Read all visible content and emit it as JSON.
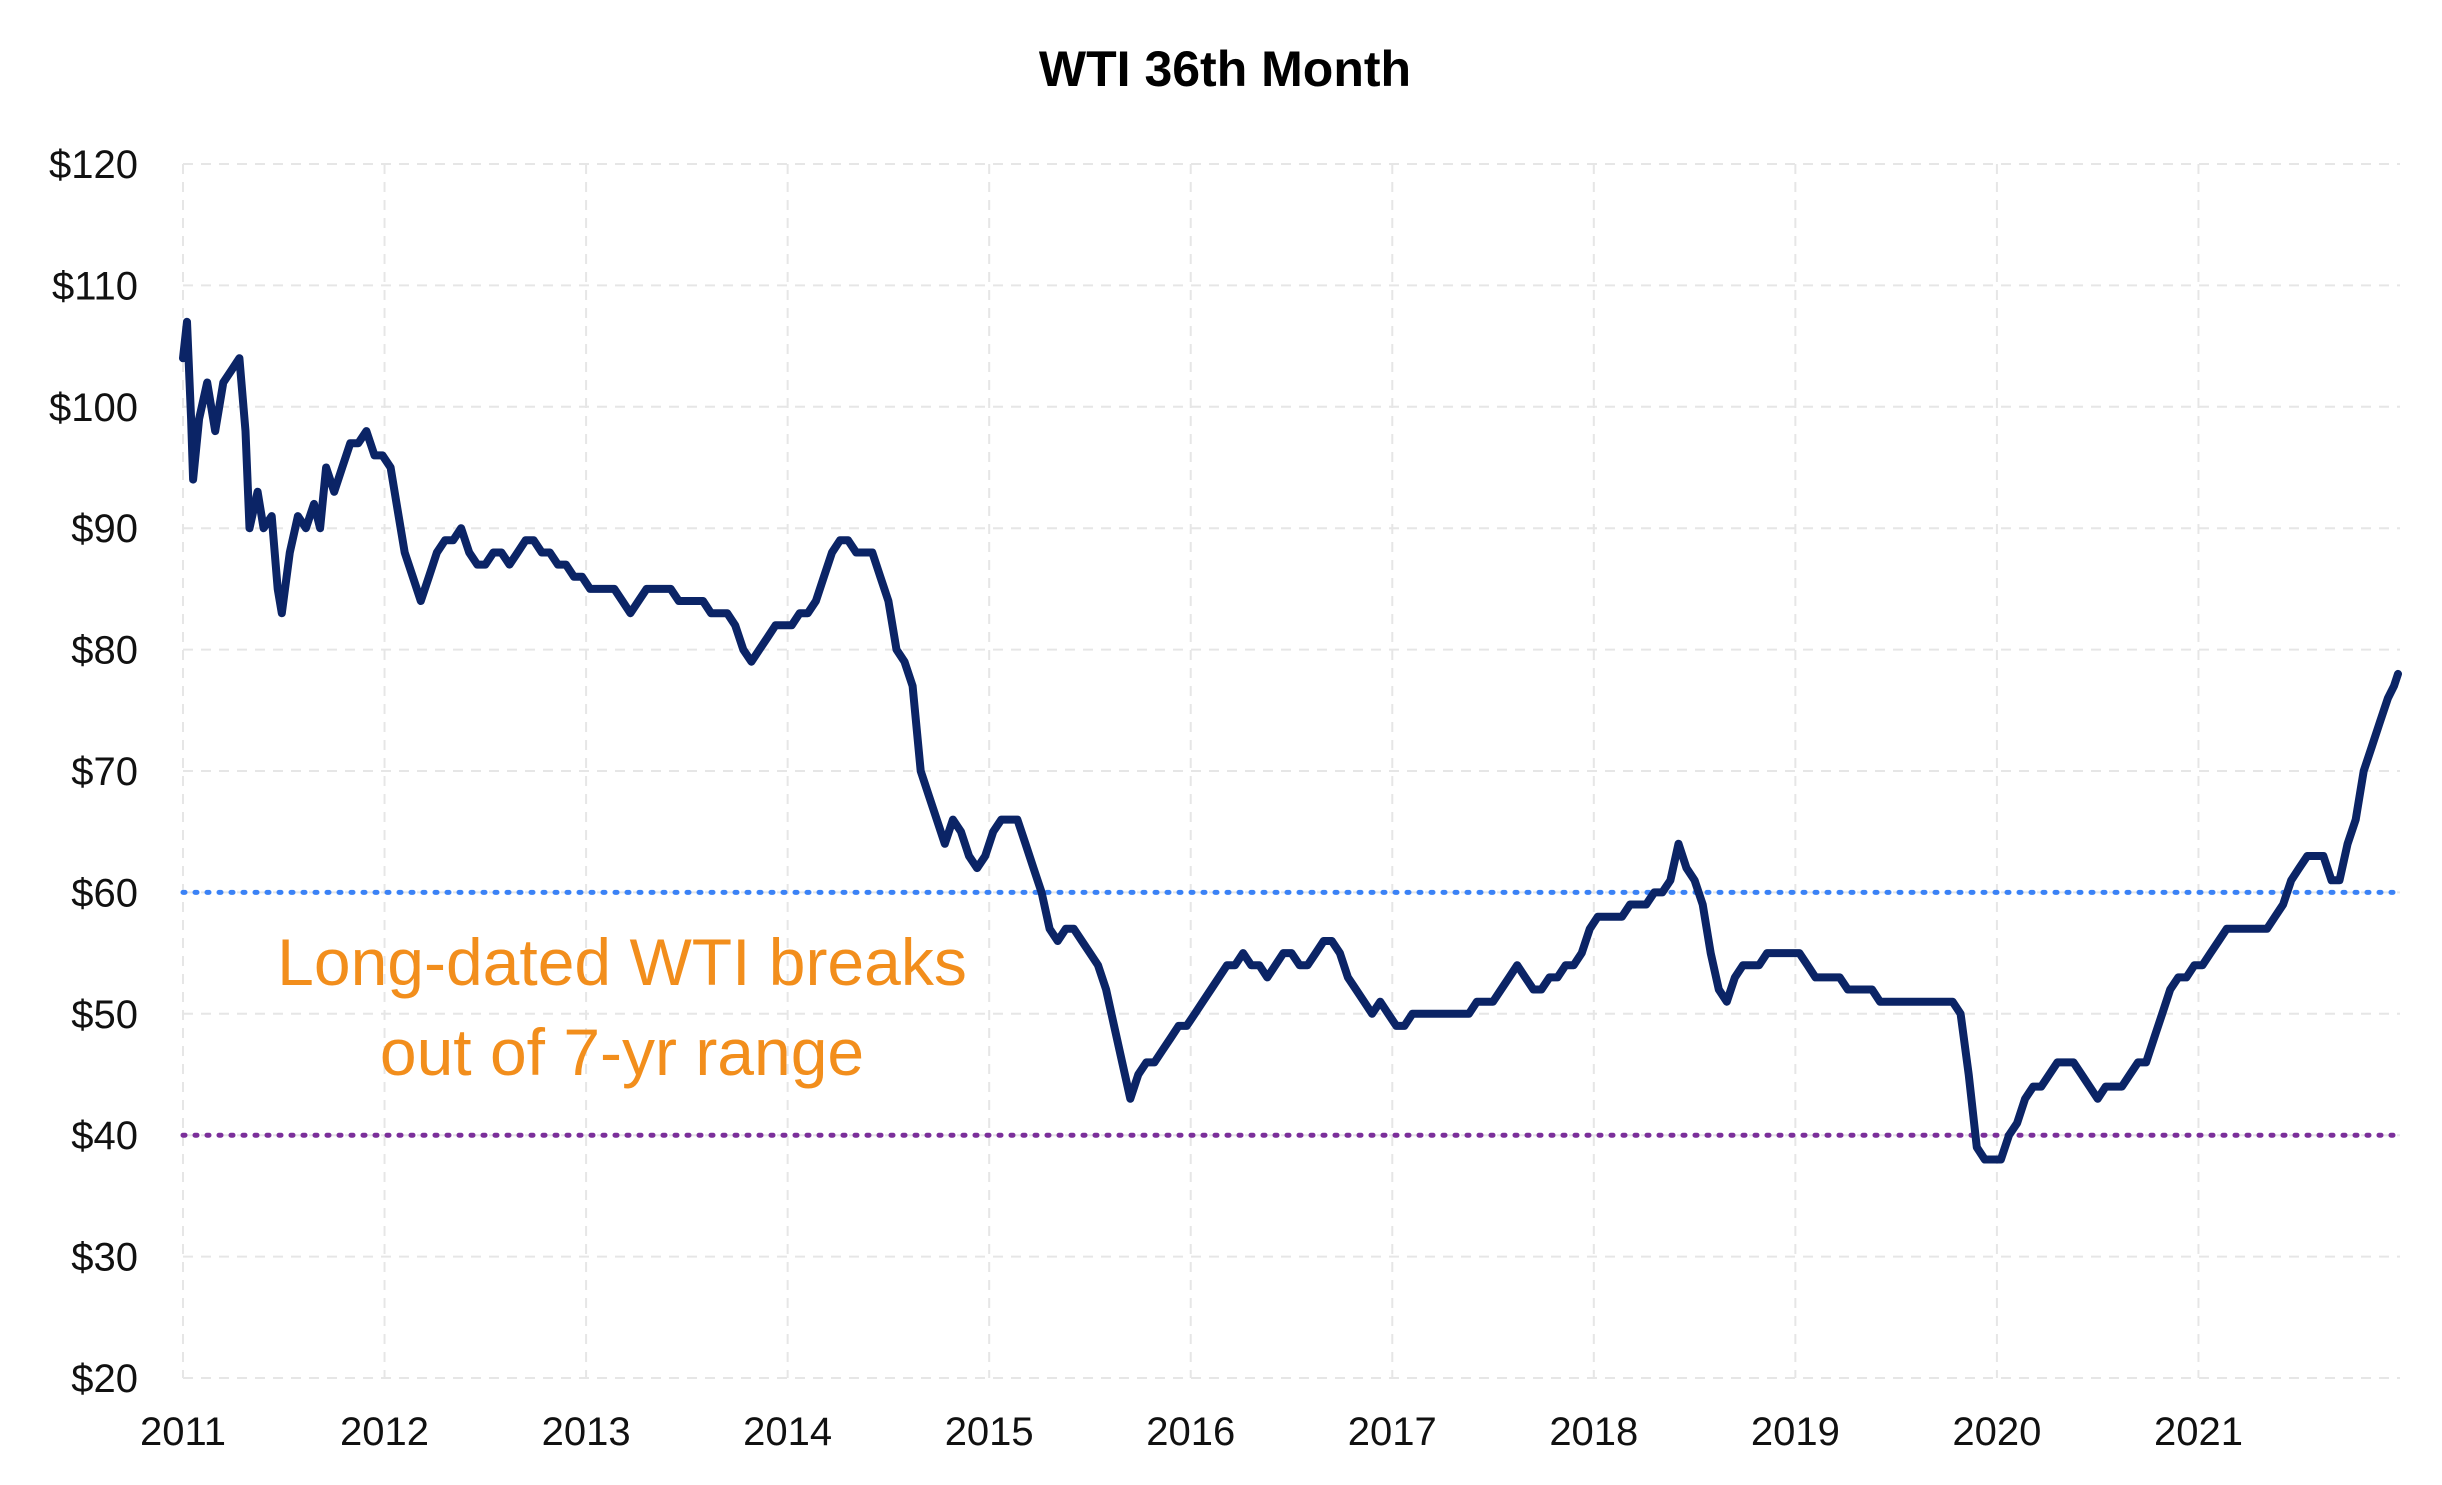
{
  "chart_data": {
    "type": "line",
    "title": "WTI 36th Month",
    "xlabel": "",
    "ylabel": "",
    "ylim": [
      20,
      120
    ],
    "xlim": [
      2011.0,
      2022.0
    ],
    "grid": true,
    "x_ticks": [
      "2011",
      "2012",
      "2013",
      "2014",
      "2015",
      "2016",
      "2017",
      "2018",
      "2019",
      "2020",
      "2021"
    ],
    "y_ticks": [
      "$20",
      "$30",
      "$40",
      "$50",
      "$60",
      "$70",
      "$80",
      "$90",
      "$100",
      "$110",
      "$120"
    ],
    "series": [
      {
        "color": "#0b2466",
        "points": [
          [
            2011.0,
            104
          ],
          [
            2011.02,
            107
          ],
          [
            2011.04,
            99
          ],
          [
            2011.05,
            94
          ],
          [
            2011.08,
            99
          ],
          [
            2011.12,
            102
          ],
          [
            2011.16,
            98
          ],
          [
            2011.2,
            102
          ],
          [
            2011.24,
            103
          ],
          [
            2011.28,
            104
          ],
          [
            2011.31,
            98
          ],
          [
            2011.33,
            90
          ],
          [
            2011.37,
            93
          ],
          [
            2011.4,
            90
          ],
          [
            2011.44,
            91
          ],
          [
            2011.47,
            85
          ],
          [
            2011.49,
            83
          ],
          [
            2011.53,
            88
          ],
          [
            2011.57,
            91
          ],
          [
            2011.61,
            90
          ],
          [
            2011.65,
            92
          ],
          [
            2011.68,
            90
          ],
          [
            2011.71,
            95
          ],
          [
            2011.75,
            93
          ],
          [
            2011.79,
            95
          ],
          [
            2011.83,
            97
          ],
          [
            2011.87,
            97
          ],
          [
            2011.91,
            98
          ],
          [
            2011.95,
            96
          ],
          [
            2011.99,
            96
          ],
          [
            2012.03,
            95
          ],
          [
            2012.06,
            92
          ],
          [
            2012.1,
            88
          ],
          [
            2012.14,
            86
          ],
          [
            2012.18,
            84
          ],
          [
            2012.22,
            86
          ],
          [
            2012.26,
            88
          ],
          [
            2012.3,
            89
          ],
          [
            2012.34,
            89
          ],
          [
            2012.38,
            90
          ],
          [
            2012.42,
            88
          ],
          [
            2012.46,
            87
          ],
          [
            2012.5,
            87
          ],
          [
            2012.54,
            88
          ],
          [
            2012.58,
            88
          ],
          [
            2012.62,
            87
          ],
          [
            2012.66,
            88
          ],
          [
            2012.7,
            89
          ],
          [
            2012.74,
            89
          ],
          [
            2012.78,
            88
          ],
          [
            2012.82,
            88
          ],
          [
            2012.86,
            87
          ],
          [
            2012.9,
            87
          ],
          [
            2012.94,
            86
          ],
          [
            2012.98,
            86
          ],
          [
            2013.02,
            85
          ],
          [
            2013.06,
            85
          ],
          [
            2013.1,
            85
          ],
          [
            2013.14,
            85
          ],
          [
            2013.18,
            84
          ],
          [
            2013.22,
            83
          ],
          [
            2013.26,
            84
          ],
          [
            2013.3,
            85
          ],
          [
            2013.34,
            85
          ],
          [
            2013.38,
            85
          ],
          [
            2013.42,
            85
          ],
          [
            2013.46,
            84
          ],
          [
            2013.5,
            84
          ],
          [
            2013.54,
            84
          ],
          [
            2013.58,
            84
          ],
          [
            2013.62,
            83
          ],
          [
            2013.66,
            83
          ],
          [
            2013.7,
            83
          ],
          [
            2013.74,
            82
          ],
          [
            2013.78,
            80
          ],
          [
            2013.82,
            79
          ],
          [
            2013.86,
            80
          ],
          [
            2013.9,
            81
          ],
          [
            2013.94,
            82
          ],
          [
            2013.98,
            82
          ],
          [
            2014.02,
            82
          ],
          [
            2014.06,
            83
          ],
          [
            2014.1,
            83
          ],
          [
            2014.14,
            84
          ],
          [
            2014.18,
            86
          ],
          [
            2014.22,
            88
          ],
          [
            2014.26,
            89
          ],
          [
            2014.3,
            89
          ],
          [
            2014.34,
            88
          ],
          [
            2014.38,
            88
          ],
          [
            2014.42,
            88
          ],
          [
            2014.46,
            86
          ],
          [
            2014.5,
            84
          ],
          [
            2014.54,
            80
          ],
          [
            2014.58,
            79
          ],
          [
            2014.62,
            77
          ],
          [
            2014.66,
            70
          ],
          [
            2014.7,
            68
          ],
          [
            2014.74,
            66
          ],
          [
            2014.78,
            64
          ],
          [
            2014.82,
            66
          ],
          [
            2014.86,
            65
          ],
          [
            2014.9,
            63
          ],
          [
            2014.94,
            62
          ],
          [
            2014.98,
            63
          ],
          [
            2015.02,
            65
          ],
          [
            2015.06,
            66
          ],
          [
            2015.1,
            66
          ],
          [
            2015.14,
            66
          ],
          [
            2015.18,
            64
          ],
          [
            2015.22,
            62
          ],
          [
            2015.26,
            60
          ],
          [
            2015.3,
            57
          ],
          [
            2015.34,
            56
          ],
          [
            2015.38,
            57
          ],
          [
            2015.42,
            57
          ],
          [
            2015.46,
            56
          ],
          [
            2015.5,
            55
          ],
          [
            2015.54,
            54
          ],
          [
            2015.58,
            52
          ],
          [
            2015.62,
            49
          ],
          [
            2015.66,
            46
          ],
          [
            2015.7,
            43
          ],
          [
            2015.74,
            45
          ],
          [
            2015.78,
            46
          ],
          [
            2015.82,
            46
          ],
          [
            2015.86,
            47
          ],
          [
            2015.9,
            48
          ],
          [
            2015.94,
            49
          ],
          [
            2015.98,
            49
          ],
          [
            2016.02,
            50
          ],
          [
            2016.06,
            51
          ],
          [
            2016.1,
            52
          ],
          [
            2016.14,
            53
          ],
          [
            2016.18,
            54
          ],
          [
            2016.22,
            54
          ],
          [
            2016.26,
            55
          ],
          [
            2016.3,
            54
          ],
          [
            2016.34,
            54
          ],
          [
            2016.38,
            53
          ],
          [
            2016.42,
            54
          ],
          [
            2016.46,
            55
          ],
          [
            2016.5,
            55
          ],
          [
            2016.54,
            54
          ],
          [
            2016.58,
            54
          ],
          [
            2016.62,
            55
          ],
          [
            2016.66,
            56
          ],
          [
            2016.7,
            56
          ],
          [
            2016.74,
            55
          ],
          [
            2016.78,
            53
          ],
          [
            2016.82,
            52
          ],
          [
            2016.86,
            51
          ],
          [
            2016.9,
            50
          ],
          [
            2016.94,
            51
          ],
          [
            2016.98,
            50
          ],
          [
            2017.02,
            49
          ],
          [
            2017.06,
            49
          ],
          [
            2017.1,
            50
          ],
          [
            2017.14,
            50
          ],
          [
            2017.18,
            50
          ],
          [
            2017.22,
            50
          ],
          [
            2017.26,
            50
          ],
          [
            2017.3,
            50
          ],
          [
            2017.34,
            50
          ],
          [
            2017.38,
            50
          ],
          [
            2017.42,
            51
          ],
          [
            2017.46,
            51
          ],
          [
            2017.5,
            51
          ],
          [
            2017.54,
            52
          ],
          [
            2017.58,
            53
          ],
          [
            2017.62,
            54
          ],
          [
            2017.66,
            53
          ],
          [
            2017.7,
            52
          ],
          [
            2017.74,
            52
          ],
          [
            2017.78,
            53
          ],
          [
            2017.82,
            53
          ],
          [
            2017.86,
            54
          ],
          [
            2017.9,
            54
          ],
          [
            2017.94,
            55
          ],
          [
            2017.98,
            57
          ],
          [
            2018.02,
            58
          ],
          [
            2018.06,
            58
          ],
          [
            2018.1,
            58
          ],
          [
            2018.14,
            58
          ],
          [
            2018.18,
            59
          ],
          [
            2018.22,
            59
          ],
          [
            2018.26,
            59
          ],
          [
            2018.3,
            60
          ],
          [
            2018.34,
            60
          ],
          [
            2018.38,
            61
          ],
          [
            2018.42,
            64
          ],
          [
            2018.46,
            62
          ],
          [
            2018.5,
            61
          ],
          [
            2018.54,
            59
          ],
          [
            2018.58,
            55
          ],
          [
            2018.62,
            52
          ],
          [
            2018.66,
            51
          ],
          [
            2018.7,
            53
          ],
          [
            2018.74,
            54
          ],
          [
            2018.78,
            54
          ],
          [
            2018.82,
            54
          ],
          [
            2018.86,
            55
          ],
          [
            2018.9,
            55
          ],
          [
            2018.94,
            55
          ],
          [
            2018.98,
            55
          ],
          [
            2019.02,
            55
          ],
          [
            2019.06,
            54
          ],
          [
            2019.1,
            53
          ],
          [
            2019.14,
            53
          ],
          [
            2019.18,
            53
          ],
          [
            2019.22,
            53
          ],
          [
            2019.26,
            52
          ],
          [
            2019.3,
            52
          ],
          [
            2019.34,
            52
          ],
          [
            2019.38,
            52
          ],
          [
            2019.42,
            51
          ],
          [
            2019.46,
            51
          ],
          [
            2019.5,
            51
          ],
          [
            2019.54,
            51
          ],
          [
            2019.58,
            51
          ],
          [
            2019.62,
            51
          ],
          [
            2019.66,
            51
          ],
          [
            2019.7,
            51
          ],
          [
            2019.74,
            51
          ],
          [
            2019.78,
            51
          ],
          [
            2019.82,
            50
          ],
          [
            2019.86,
            45
          ],
          [
            2019.9,
            39
          ],
          [
            2019.94,
            38
          ],
          [
            2019.98,
            38
          ],
          [
            2020.02,
            38
          ],
          [
            2020.06,
            40
          ],
          [
            2020.1,
            41
          ],
          [
            2020.14,
            43
          ],
          [
            2020.18,
            44
          ],
          [
            2020.22,
            44
          ],
          [
            2020.26,
            45
          ],
          [
            2020.3,
            46
          ],
          [
            2020.34,
            46
          ],
          [
            2020.38,
            46
          ],
          [
            2020.42,
            45
          ],
          [
            2020.46,
            44
          ],
          [
            2020.5,
            43
          ],
          [
            2020.54,
            44
          ],
          [
            2020.58,
            44
          ],
          [
            2020.62,
            44
          ],
          [
            2020.66,
            45
          ],
          [
            2020.7,
            46
          ],
          [
            2020.74,
            46
          ],
          [
            2020.78,
            48
          ],
          [
            2020.82,
            50
          ],
          [
            2020.86,
            52
          ],
          [
            2020.9,
            53
          ],
          [
            2020.94,
            53
          ],
          [
            2020.98,
            54
          ],
          [
            2021.02,
            54
          ],
          [
            2021.06,
            55
          ],
          [
            2021.1,
            56
          ],
          [
            2021.14,
            57
          ],
          [
            2021.18,
            57
          ],
          [
            2021.22,
            57
          ],
          [
            2021.26,
            57
          ],
          [
            2021.3,
            57
          ],
          [
            2021.34,
            57
          ],
          [
            2021.38,
            58
          ],
          [
            2021.42,
            59
          ],
          [
            2021.46,
            61
          ],
          [
            2021.5,
            62
          ],
          [
            2021.54,
            63
          ],
          [
            2021.58,
            63
          ],
          [
            2021.62,
            63
          ],
          [
            2021.66,
            61
          ],
          [
            2021.7,
            61
          ],
          [
            2021.74,
            64
          ],
          [
            2021.78,
            66
          ],
          [
            2021.82,
            70
          ],
          [
            2021.86,
            72
          ],
          [
            2021.9,
            74
          ],
          [
            2021.94,
            76
          ],
          [
            2021.97,
            77
          ],
          [
            2021.99,
            78
          ]
        ]
      }
    ],
    "reference_lines": [
      {
        "y": 60,
        "color": "#3b82f6",
        "style": "dotted"
      },
      {
        "y": 40,
        "color": "#7b2f9a",
        "style": "dotted"
      }
    ],
    "annotation": {
      "lines": [
        "Long-dated WTI breaks",
        "out of 7-yr range"
      ],
      "color": "#f28e1c"
    }
  }
}
